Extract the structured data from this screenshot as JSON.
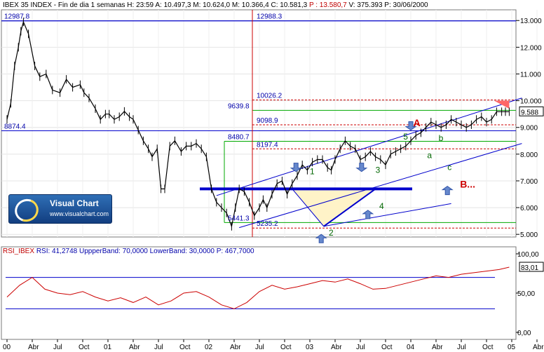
{
  "header": {
    "ticker_line": "IBEX 35 INDEX - Fin de dia 1 semanas H: 23:59",
    "a": "A: 10.497,3",
    "m": "M: 10.624,0",
    "mm": "M: 10.366,4",
    "c": "C: 10.581,3",
    "p": "P : 13.580,7",
    "v": "V: 375.393",
    "date": "P: 30/06/2000"
  },
  "rsi_header": {
    "name": "RSI_IBEX",
    "value": "RSI: 41,2748",
    "upper": "UppperBand: 70,0000",
    "lower": "LowerBand: 30,0000",
    "p": "P: 467,7000"
  },
  "logo": {
    "title": "Visual Chart",
    "url": "www.visualchart.com"
  },
  "price_axis_labels": [
    "13.000",
    "12.000",
    "11.000",
    "10.000",
    "9.000",
    "8.000",
    "7.000",
    "6.000",
    "5.000"
  ],
  "price_last": "9.588",
  "rsi_axis_labels": [
    "100,00",
    "50,00",
    "0,00"
  ],
  "rsi_last": "83,01",
  "level_labels": {
    "l12987": "12987.8",
    "l12988": "12988.3",
    "l10026": "10026.2",
    "l9639": "9639.8",
    "l9098": "9098.9",
    "l8874": "8874.4",
    "l8480": "8480.7",
    "l8197": "8197.4",
    "l5441": "5441.3",
    "l5235": "5235.2"
  },
  "wave_labels": {
    "w1": "1",
    "w2": "2",
    "w3": "3",
    "w4": "4",
    "w5": "5",
    "wa": "a",
    "wb": "b",
    "wc": "c",
    "A": "A",
    "B": "B..."
  },
  "chart_data": {
    "type": "line",
    "title": "IBEX 35 INDEX",
    "x_ticks": [
      "00",
      "Abr",
      "Jul",
      "Oct",
      "01",
      "Abr",
      "Jul",
      "Oct",
      "02",
      "Abr",
      "Jul",
      "Oct",
      "03",
      "Abr",
      "Jul",
      "Oct",
      "04",
      "Abr",
      "Jul",
      "Oct",
      "05",
      "Abr"
    ],
    "ylim": [
      4900,
      13400
    ],
    "series": [
      {
        "name": "IBEX 35 INDEX",
        "x": [
          0,
          0.15,
          0.3,
          0.45,
          0.55,
          0.65,
          0.85,
          1.1,
          1.3,
          1.55,
          1.8,
          2.1,
          2.35,
          2.6,
          2.9,
          3.05,
          3.25,
          3.5,
          3.7,
          3.9,
          4.05,
          4.25,
          4.45,
          4.65,
          4.85,
          5.0,
          5.2,
          5.4,
          5.6,
          5.75,
          5.95,
          6.1,
          6.25,
          6.45,
          6.65,
          6.9,
          7.1,
          7.3,
          7.5,
          7.7,
          7.9,
          8.1,
          8.3,
          8.5,
          8.7,
          8.9,
          9.05,
          9.2,
          9.4,
          9.6,
          9.8,
          10.0,
          10.15,
          10.3,
          10.5,
          10.7,
          10.9,
          11.1,
          11.3,
          11.5,
          11.7,
          11.9,
          12.1,
          12.3,
          12.5,
          12.7,
          12.85,
          13.0,
          13.2,
          13.4,
          13.6,
          13.8,
          14.0,
          14.2,
          14.4,
          14.6,
          14.8,
          15.0,
          15.2,
          15.4,
          15.6,
          15.8,
          16.0,
          16.2,
          16.4,
          16.6,
          16.8,
          17.0,
          17.2,
          17.4,
          17.6,
          17.8,
          18.0,
          18.2,
          18.4,
          18.6,
          18.8,
          19.0,
          19.2,
          19.4,
          19.6,
          19.75,
          19.9
        ],
        "values": [
          9300,
          9900,
          11300,
          12000,
          12600,
          12950,
          12500,
          11300,
          10900,
          11000,
          10400,
          10300,
          10800,
          10500,
          10600,
          10300,
          10100,
          9700,
          9300,
          9500,
          9500,
          9300,
          9400,
          9600,
          9400,
          9300,
          8900,
          8500,
          8200,
          7900,
          8200,
          6700,
          6700,
          8300,
          8500,
          8100,
          8300,
          8300,
          8400,
          8200,
          7900,
          6700,
          6200,
          6000,
          5800,
          5300,
          6000,
          6700,
          6600,
          6200,
          5700,
          6000,
          6300,
          6000,
          6500,
          6900,
          7000,
          6500,
          6900,
          7200,
          7600,
          7400,
          7700,
          7800,
          7800,
          7500,
          7400,
          7800,
          8200,
          8500,
          8300,
          8200,
          7800,
          7900,
          8100,
          7900,
          7800,
          7600,
          8000,
          8100,
          8200,
          8300,
          8500,
          8700,
          8800,
          9000,
          9200,
          9100,
          9000,
          9100,
          9300,
          9200,
          9100,
          9000,
          9100,
          9300,
          9400,
          9200,
          9300,
          9588,
          9588,
          9588,
          9588
        ]
      },
      {
        "name": "RSI_IBEX",
        "x": [
          0,
          0.5,
          1.0,
          1.5,
          2.0,
          2.5,
          3.0,
          3.5,
          4.0,
          4.5,
          5.0,
          5.5,
          6.0,
          6.5,
          7.0,
          7.5,
          8.0,
          8.5,
          9.0,
          9.5,
          10.0,
          10.5,
          11.0,
          11.5,
          12.0,
          12.5,
          13.0,
          13.5,
          14.0,
          14.5,
          15.0,
          15.5,
          16.0,
          16.5,
          17.0,
          17.5,
          18.0,
          18.5,
          19.0,
          19.5,
          19.9
        ],
        "values": [
          45,
          60,
          70,
          55,
          50,
          48,
          52,
          45,
          40,
          44,
          38,
          45,
          35,
          40,
          50,
          52,
          45,
          35,
          30,
          38,
          52,
          60,
          55,
          58,
          62,
          66,
          64,
          68,
          62,
          55,
          56,
          60,
          64,
          68,
          72,
          70,
          74,
          76,
          78,
          80,
          83.01
        ]
      }
    ],
    "rsi_ylim": [
      0,
      100
    ],
    "rsi_bands": [
      70,
      30
    ],
    "levels": [
      12987.8,
      12988.3,
      10026.2,
      9639.8,
      9098.9,
      8874.4,
      8480.7,
      8197.4,
      5441.3,
      5235.2
    ],
    "colors": {
      "price": "#000000",
      "rsi": "#cc0000",
      "trend": "#0000cc",
      "level_red": "#cc0000",
      "level_green": "#00aa00",
      "horizontal_blue": "#0000cc",
      "wedge": "#fff3c8",
      "target": "#ff6666"
    }
  }
}
